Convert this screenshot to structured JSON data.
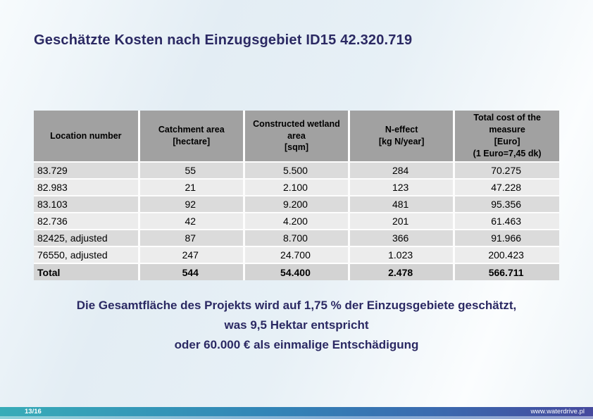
{
  "slide": {
    "title": "Geschätzte Kosten nach Einzugsgebiet ID15 42.320.719"
  },
  "table": {
    "columns": [
      "Location number",
      "Catchment area\n[hectare]",
      "Constructed wetland\narea\n[sqm]",
      "N-effect\n[kg N/year]",
      "Total cost of the\nmeasure\n[Euro]\n(1 Euro=7,45 dk)"
    ],
    "rows": [
      [
        "83.729",
        "55",
        "5.500",
        "284",
        "70.275"
      ],
      [
        "82.983",
        "21",
        "2.100",
        "123",
        "47.228"
      ],
      [
        "83.103",
        "92",
        "9.200",
        "481",
        "95.356"
      ],
      [
        "82.736",
        "42",
        "4.200",
        "201",
        "61.463"
      ],
      [
        "82425, adjusted",
        "87",
        "8.700",
        "366",
        "91.966"
      ],
      [
        "76550, adjusted",
        "247",
        "24.700",
        "1.023",
        "200.423"
      ]
    ],
    "total_row": [
      "Total",
      "544",
      "54.400",
      "2.478",
      "566.711"
    ]
  },
  "notes": {
    "line1": "Die Gesamtfläche des Projekts wird auf 1,75 % der Einzugsgebiete geschätzt,",
    "line2": "was 9,5 Hektar entspricht",
    "line3": "oder 60.000 € als einmalige Entschädigung"
  },
  "footer": {
    "page_indicator": "13/16",
    "website": "www.waterdrive.pl"
  },
  "colors": {
    "title_text": "#2b2963",
    "table_header_bg": "#a1a1a1",
    "row_odd_bg": "#dbdbdb",
    "row_even_bg": "#ececec",
    "total_row_bg": "#d3d3d3",
    "footer_teal": "#38acb8",
    "footer_blue": "#3285b7",
    "footer_indigo": "#45499d"
  }
}
